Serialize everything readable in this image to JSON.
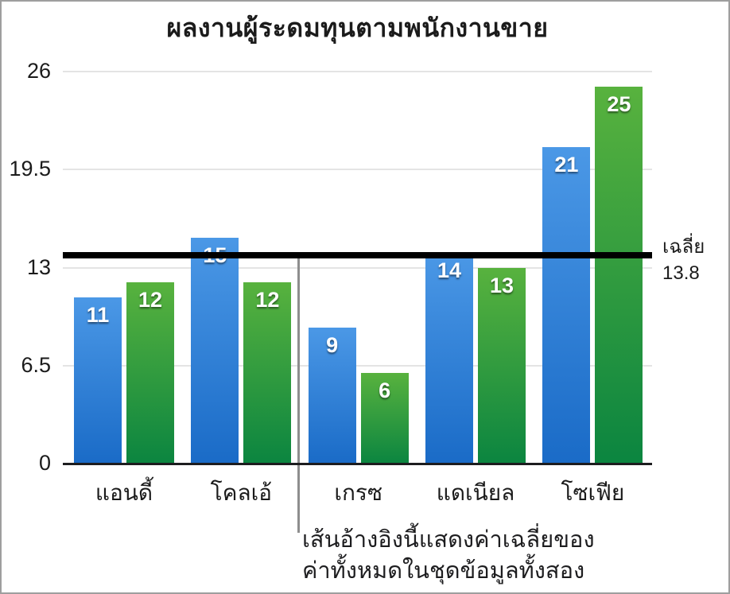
{
  "chart_data": {
    "type": "bar",
    "title": "ผลงานผู้ระดมทุนตามพนักงานขาย",
    "categories": [
      "แอนดี้",
      "โคลเอ้",
      "เกรซ",
      "แดเนียล",
      "โซเฟีย"
    ],
    "series": [
      {
        "color_top": "#4b98e6",
        "color_bottom": "#1a6bc7",
        "values": [
          11,
          15,
          9,
          14,
          21
        ]
      },
      {
        "color_top": "#58b23e",
        "color_bottom": "#0b8540",
        "values": [
          12,
          12,
          6,
          13,
          25
        ]
      }
    ],
    "ylim": [
      0,
      26
    ],
    "yticks": [
      {
        "label": "0",
        "value": 0
      },
      {
        "label": "6.5",
        "value": 6.5
      },
      {
        "label": "13",
        "value": 13
      },
      {
        "label": "19.5",
        "value": 19.5
      },
      {
        "label": "26",
        "value": 26
      }
    ],
    "grid": true,
    "legend": "none",
    "reference_line": {
      "value": 13.8,
      "label_title": "เฉลี่ย",
      "label_value": "13.8"
    },
    "annotation": {
      "line1": "เส้นอ้างอิงนี้แสดงค่าเฉลี่ยของ",
      "line2": "ค่าทั้งหมดในชุดข้อมูลทั้งสอง"
    }
  }
}
